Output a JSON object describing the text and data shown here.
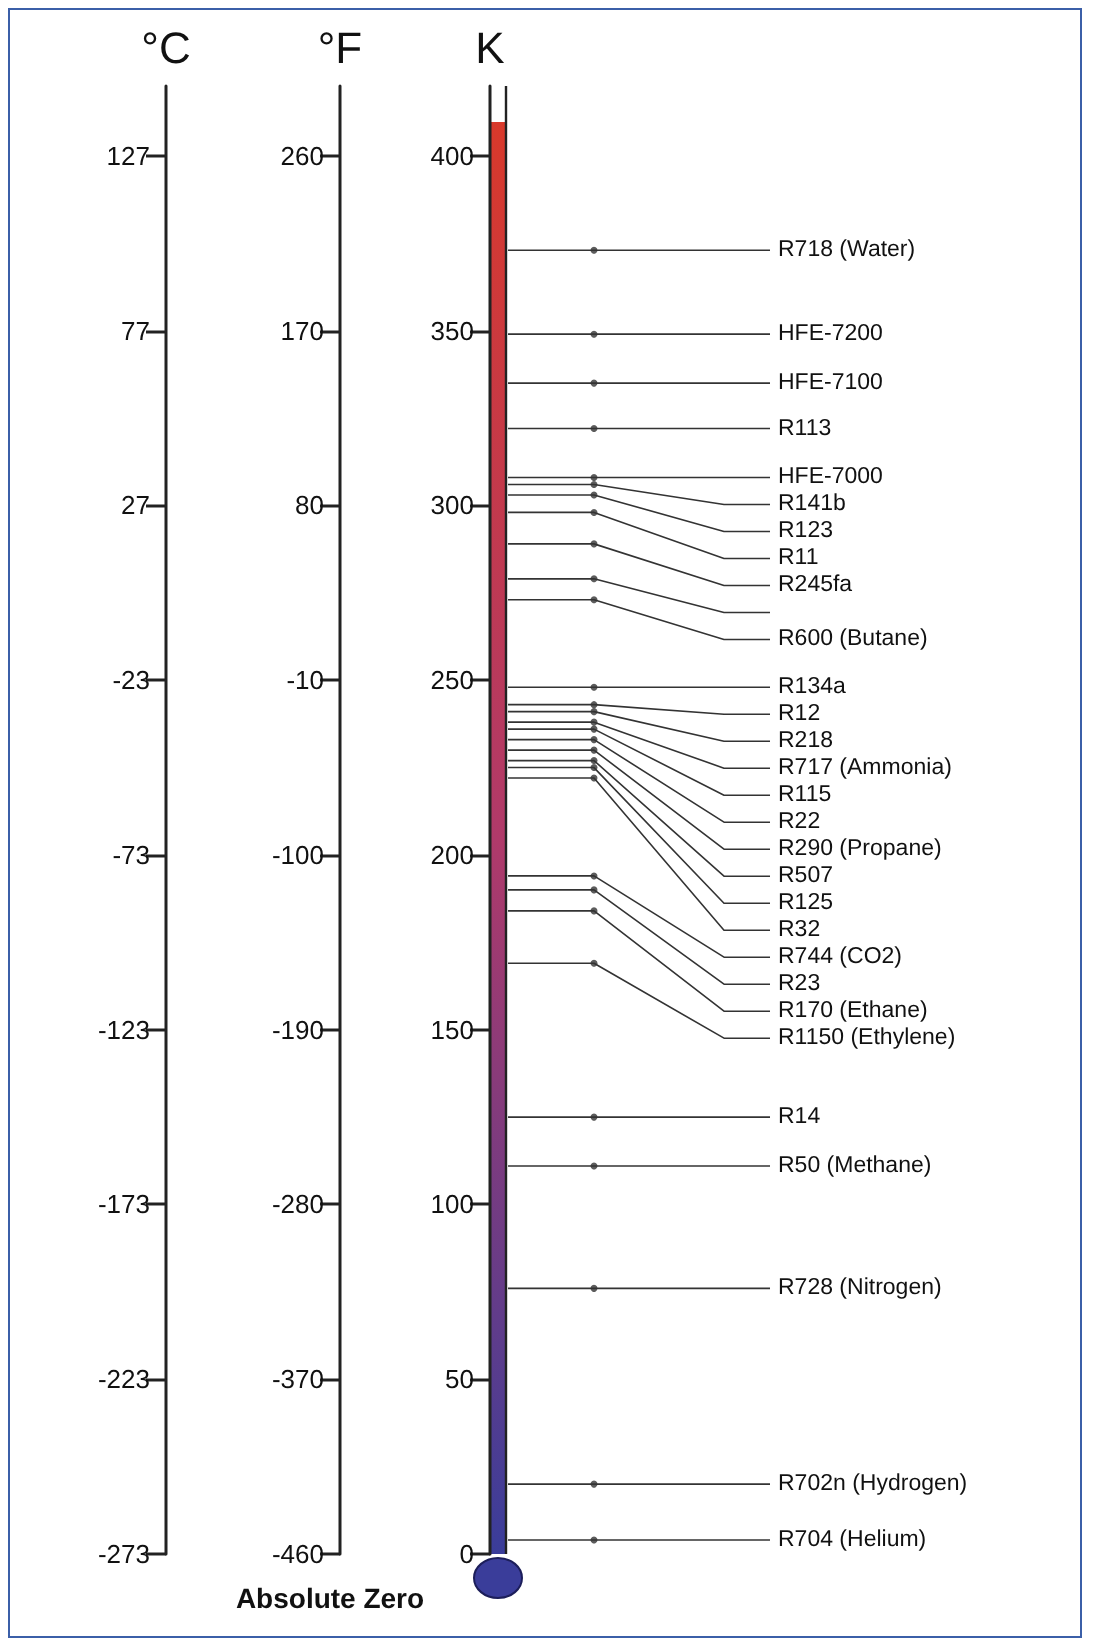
{
  "chart_data": {
    "type": "scatter",
    "marker": "circle",
    "categories": [
      null
    ],
    "ylabel": "K",
    "ylim": [
      0,
      420
    ],
    "yticks": [
      0,
      50,
      100,
      150,
      200,
      250,
      300,
      350,
      400
    ],
    "y2label": "°C",
    "y2lim": [
      -273,
      147
    ],
    "y2ticks": [
      -273,
      -223,
      -173,
      -123,
      -73,
      -23,
      27,
      77,
      127
    ],
    "y3label": "°F",
    "y3lim": [
      -460,
      296
    ],
    "y3ticks": [
      -460,
      -370,
      -280,
      -190,
      -100,
      -10,
      80,
      170,
      260
    ],
    "series": [
      {
        "name": "R718 (Water)",
        "color": "#333333",
        "values": [
          373
        ]
      },
      {
        "name": "HFE-7200",
        "color": "#333333",
        "values": [
          349
        ]
      },
      {
        "name": "HFE-7100",
        "color": "#333333",
        "values": [
          335
        ]
      },
      {
        "name": "R113",
        "color": "#333333",
        "values": [
          322
        ]
      },
      {
        "name": "HFE-7000",
        "color": "#333333",
        "values": [
          308
        ]
      },
      {
        "name": "R141b",
        "color": "#333333",
        "values": [
          306
        ]
      },
      {
        "name": "R123",
        "color": "#333333",
        "values": [
          303
        ]
      },
      {
        "name": "R11",
        "color": "#333333",
        "values": [
          298
        ]
      },
      {
        "name": "R245fa",
        "color": "#333333",
        "values": [
          289
        ]
      },
      {
        "color": "#333333",
        "values": [
          279
        ]
      },
      {
        "name": "R600 (Butane)",
        "color": "#333333",
        "values": [
          273
        ]
      },
      {
        "name": "R134a",
        "color": "#333333",
        "values": [
          248
        ]
      },
      {
        "name": "R12",
        "color": "#333333",
        "values": [
          243
        ]
      },
      {
        "name": "R218",
        "color": "#333333",
        "values": [
          241
        ]
      },
      {
        "name": "R717 (Ammonia)",
        "color": "#333333",
        "values": [
          238
        ]
      },
      {
        "name": "R115",
        "color": "#333333",
        "values": [
          236
        ]
      },
      {
        "name": "R22",
        "color": "#333333",
        "values": [
          233
        ]
      },
      {
        "name": "R290 (Propane)",
        "color": "#333333",
        "values": [
          230
        ]
      },
      {
        "name": "R507",
        "color": "#333333",
        "values": [
          227
        ]
      },
      {
        "name": "R125",
        "color": "#333333",
        "values": [
          225
        ]
      },
      {
        "name": "R32",
        "color": "#333333",
        "values": [
          222
        ]
      },
      {
        "name": "R744 (CO2)",
        "color": "#333333",
        "values": [
          194
        ]
      },
      {
        "name": "R23",
        "color": "#333333",
        "values": [
          190
        ]
      },
      {
        "name": "R170 (Ethane)",
        "color": "#333333",
        "values": [
          184
        ]
      },
      {
        "name": "R1150 (Ethylene)",
        "color": "#333333",
        "values": [
          169
        ]
      },
      {
        "name": "R14",
        "color": "#333333",
        "values": [
          125
        ]
      },
      {
        "name": "R50 (Methane)",
        "color": "#333333",
        "values": [
          111
        ]
      },
      {
        "name": "R728 (Nitrogen)",
        "color": "#333333",
        "values": [
          76
        ]
      },
      {
        "name": "R702n (Hydrogen)",
        "color": "#333333",
        "values": [
          20
        ]
      },
      {
        "name": "R704 (Helium)",
        "color": "#333333",
        "values": [
          4
        ]
      }
    ],
    "annotations": [
      "Absolute Zero"
    ],
    "grid": false,
    "legend": false
  }
}
